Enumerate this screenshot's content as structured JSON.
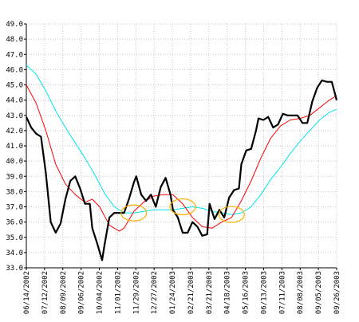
{
  "chart_data": {
    "type": "line",
    "ylim": [
      33.0,
      49.0
    ],
    "y_ticks": [
      "33.0",
      "34.0",
      "35.0",
      "36.0",
      "37.0",
      "38.0",
      "39.0",
      "40.0",
      "41.0",
      "42.0",
      "43.0",
      "44.0",
      "45.0",
      "46.0",
      "47.0",
      "48.0",
      "49.0"
    ],
    "x_ticks": [
      "06/14/2002",
      "07/12/2002",
      "08/09/2002",
      "09/06/2002",
      "10/04/2002",
      "11/01/2002",
      "11/29/2002",
      "12/27/2002",
      "01/24/2003",
      "02/21/2003",
      "03/21/2003",
      "04/18/2003",
      "05/16/2003",
      "06/13/2003",
      "07/11/2003",
      "08/08/2003",
      "09/05/2003",
      "09/26/2003"
    ],
    "grid": true,
    "series": [
      {
        "role": "price",
        "color": "#000000",
        "points": [
          [
            0,
            42.9
          ],
          [
            2,
            42.2
          ],
          [
            4,
            41.8
          ],
          [
            6,
            41.6
          ],
          [
            8,
            39.2
          ],
          [
            10,
            36.0
          ],
          [
            12,
            35.3
          ],
          [
            14,
            35.9
          ],
          [
            16,
            37.5
          ],
          [
            18,
            38.7
          ],
          [
            20,
            39.0
          ],
          [
            22,
            38.2
          ],
          [
            24,
            37.2
          ],
          [
            26,
            37.2
          ],
          [
            27,
            35.6
          ],
          [
            29,
            34.6
          ],
          [
            31,
            33.5
          ],
          [
            32,
            34.5
          ],
          [
            34,
            36.3
          ],
          [
            36,
            36.6
          ],
          [
            38,
            36.6
          ],
          [
            40,
            36.6
          ],
          [
            42,
            37.5
          ],
          [
            44,
            38.6
          ],
          [
            45,
            39.0
          ],
          [
            47,
            37.8
          ],
          [
            49,
            37.4
          ],
          [
            51,
            37.8
          ],
          [
            53,
            37.0
          ],
          [
            55,
            38.3
          ],
          [
            57,
            38.9
          ],
          [
            59,
            37.8
          ],
          [
            60,
            36.8
          ],
          [
            62,
            36.3
          ],
          [
            64,
            35.3
          ],
          [
            66,
            35.3
          ],
          [
            68,
            36.0
          ],
          [
            70,
            35.7
          ],
          [
            72,
            35.1
          ],
          [
            74,
            35.2
          ],
          [
            75,
            37.2
          ],
          [
            77,
            36.2
          ],
          [
            79,
            36.8
          ],
          [
            81,
            36.3
          ],
          [
            83,
            37.6
          ],
          [
            85,
            38.1
          ],
          [
            87,
            38.2
          ],
          [
            88,
            39.8
          ],
          [
            90,
            40.7
          ],
          [
            92,
            40.8
          ],
          [
            94,
            42.0
          ],
          [
            95,
            42.8
          ],
          [
            97,
            42.7
          ],
          [
            99,
            42.9
          ],
          [
            101,
            42.2
          ],
          [
            103,
            42.4
          ],
          [
            105,
            43.1
          ],
          [
            107,
            43.0
          ],
          [
            109,
            43.0
          ],
          [
            111,
            43.0
          ],
          [
            113,
            42.5
          ],
          [
            115,
            42.5
          ],
          [
            117,
            43.9
          ],
          [
            119,
            44.8
          ],
          [
            121,
            45.3
          ],
          [
            123,
            45.2
          ],
          [
            125,
            45.2
          ],
          [
            127,
            44.0
          ]
        ]
      },
      {
        "role": "short-average",
        "color": "#ff0000",
        "points": [
          [
            0,
            45.0
          ],
          [
            4,
            43.8
          ],
          [
            8,
            42.0
          ],
          [
            12,
            39.8
          ],
          [
            16,
            38.5
          ],
          [
            20,
            37.8
          ],
          [
            24,
            37.3
          ],
          [
            27,
            37.5
          ],
          [
            30,
            37.0
          ],
          [
            34,
            35.8
          ],
          [
            38,
            35.4
          ],
          [
            40,
            35.6
          ],
          [
            44,
            36.7
          ],
          [
            48,
            37.3
          ],
          [
            52,
            37.7
          ],
          [
            56,
            37.8
          ],
          [
            60,
            37.8
          ],
          [
            64,
            37.2
          ],
          [
            68,
            36.3
          ],
          [
            72,
            35.7
          ],
          [
            76,
            35.6
          ],
          [
            80,
            36.0
          ],
          [
            84,
            36.3
          ],
          [
            88,
            37.4
          ],
          [
            92,
            38.7
          ],
          [
            96,
            40.2
          ],
          [
            100,
            41.5
          ],
          [
            104,
            42.3
          ],
          [
            108,
            42.7
          ],
          [
            112,
            42.8
          ],
          [
            116,
            43.0
          ],
          [
            120,
            43.5
          ],
          [
            124,
            44.0
          ],
          [
            127,
            44.3
          ]
        ]
      },
      {
        "role": "long-average",
        "color": "#00e5ee",
        "points": [
          [
            0,
            46.3
          ],
          [
            4,
            45.7
          ],
          [
            8,
            44.6
          ],
          [
            12,
            43.3
          ],
          [
            16,
            42.2
          ],
          [
            20,
            41.2
          ],
          [
            24,
            40.2
          ],
          [
            28,
            39.1
          ],
          [
            32,
            37.9
          ],
          [
            36,
            37.0
          ],
          [
            40,
            36.6
          ],
          [
            44,
            36.6
          ],
          [
            48,
            36.7
          ],
          [
            52,
            36.8
          ],
          [
            56,
            36.8
          ],
          [
            60,
            36.8
          ],
          [
            64,
            36.9
          ],
          [
            68,
            37.0
          ],
          [
            72,
            36.9
          ],
          [
            76,
            36.7
          ],
          [
            80,
            36.6
          ],
          [
            84,
            36.5
          ],
          [
            88,
            36.6
          ],
          [
            92,
            37.0
          ],
          [
            96,
            37.8
          ],
          [
            100,
            38.8
          ],
          [
            104,
            39.6
          ],
          [
            108,
            40.5
          ],
          [
            112,
            41.3
          ],
          [
            116,
            42.0
          ],
          [
            120,
            42.7
          ],
          [
            124,
            43.2
          ],
          [
            127,
            43.4
          ]
        ]
      }
    ],
    "annotations": [
      {
        "kind": "crossover-ellipse",
        "color": "#ffb000",
        "x": 44,
        "y": 36.6
      },
      {
        "kind": "crossover-ellipse",
        "color": "#ffb000",
        "x": 64,
        "y": 37.0
      },
      {
        "kind": "crossover-ellipse",
        "color": "#ffb000",
        "x": 84,
        "y": 36.5
      }
    ]
  }
}
